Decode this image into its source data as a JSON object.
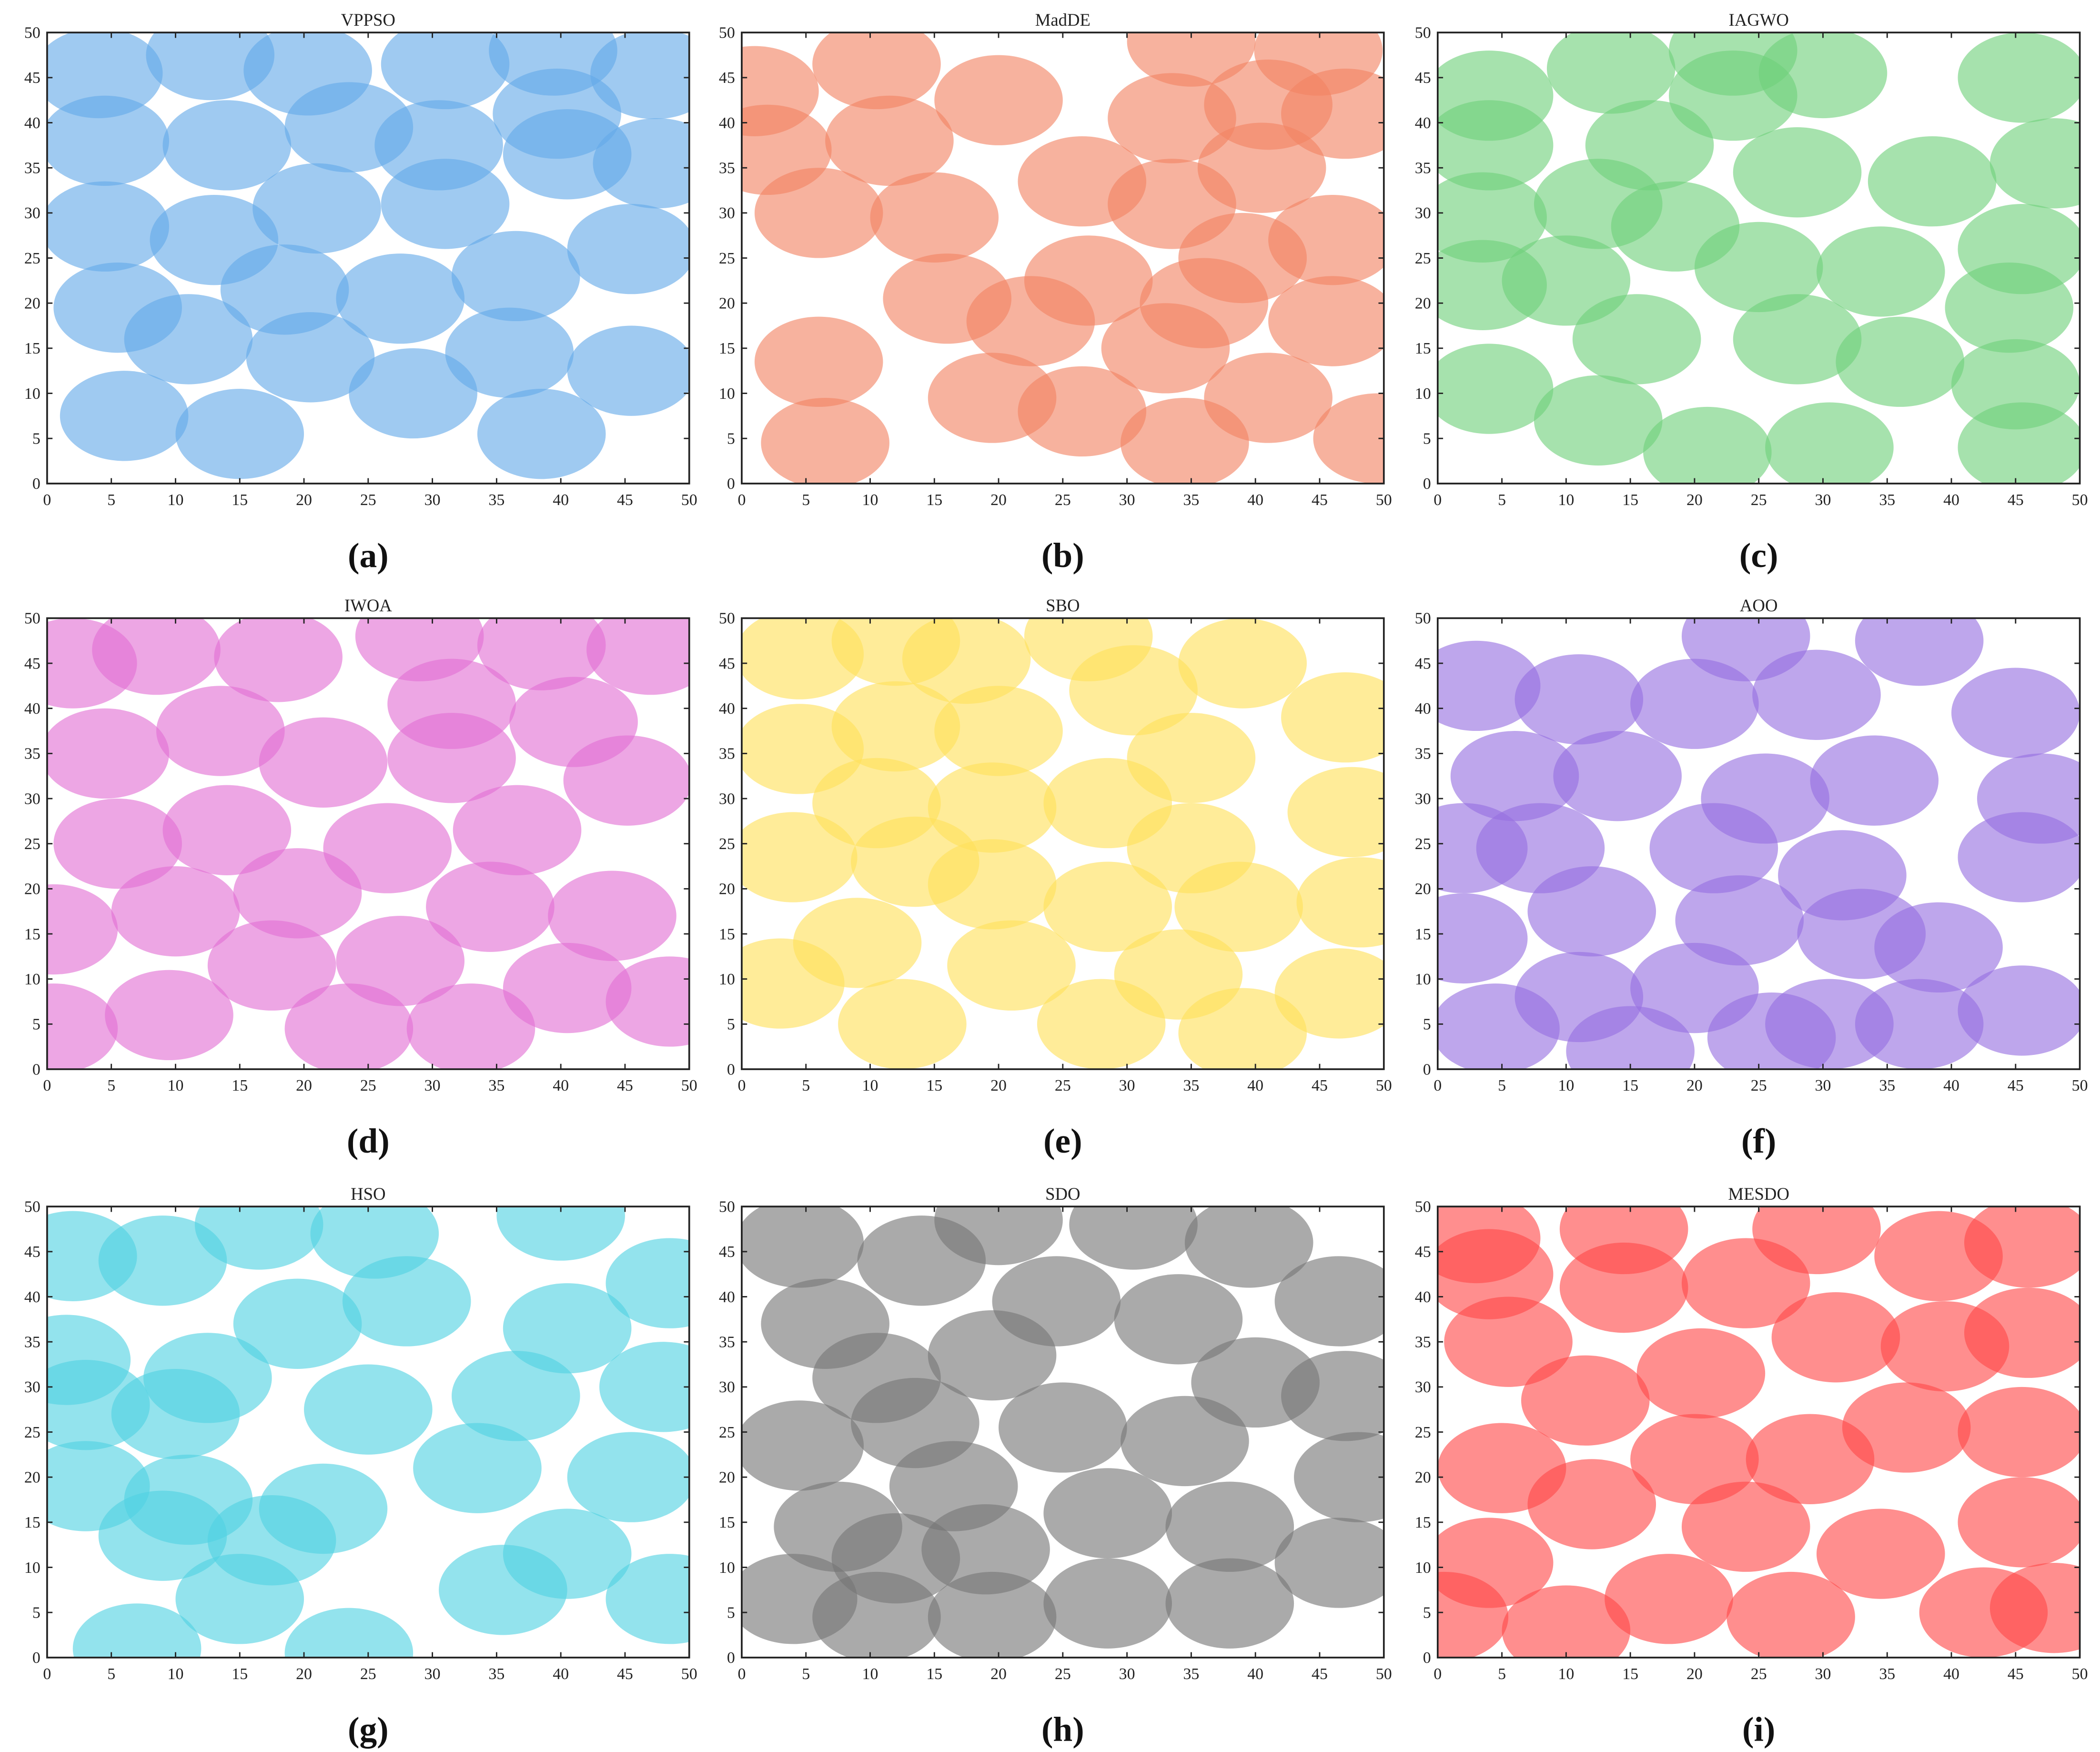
{
  "chart_data": [
    {
      "type": "scatter",
      "title": "VPPSO",
      "caption": "(a)",
      "color": "rgba(100,170,232,0.62)",
      "marker_radius": 5,
      "xlim": [
        0,
        50
      ],
      "ylim": [
        0,
        50
      ],
      "xticks": [
        0,
        5,
        10,
        15,
        20,
        25,
        30,
        35,
        40,
        45,
        50
      ],
      "yticks": [
        0,
        5,
        10,
        15,
        20,
        25,
        30,
        35,
        40,
        45,
        50
      ],
      "x": [
        4,
        12.7,
        20.3,
        31,
        39.4,
        47.3,
        4.5,
        14,
        23.5,
        30.5,
        39.7,
        40.5,
        47.5,
        4.5,
        13,
        21,
        31,
        36.5,
        45.5,
        5.5,
        11,
        18.5,
        27.5,
        36,
        20.5,
        28.5,
        45.5,
        6,
        15,
        38.5
      ],
      "y": [
        45.5,
        47.5,
        45.8,
        46.5,
        48,
        45.4,
        38,
        37.5,
        39.5,
        37.5,
        41,
        36.5,
        35.5,
        28.5,
        27,
        30.5,
        31,
        23,
        26,
        19.5,
        16,
        21.5,
        20.5,
        14.5,
        14,
        10,
        12.5,
        7.5,
        5.5,
        5.5
      ]
    },
    {
      "type": "scatter",
      "title": "MadDE",
      "caption": "(b)",
      "color": "rgba(242,130,98,0.62)",
      "marker_radius": 5,
      "xlim": [
        0,
        50
      ],
      "ylim": [
        0,
        50
      ],
      "xticks": [
        0,
        5,
        10,
        15,
        20,
        25,
        30,
        35,
        40,
        45,
        50
      ],
      "yticks": [
        0,
        5,
        10,
        15,
        20,
        25,
        30,
        35,
        40,
        45,
        50
      ],
      "x": [
        1,
        10.5,
        20,
        35,
        44.9,
        2,
        11.5,
        6,
        15,
        26.5,
        33.5,
        41,
        47,
        33.5,
        40.5,
        46,
        39,
        16,
        27,
        36,
        22.5,
        46,
        33,
        6,
        19.5,
        26.5,
        41,
        34.5,
        6.5,
        49.5
      ],
      "y": [
        43.5,
        46.5,
        42.5,
        49,
        48,
        37,
        38,
        30,
        29.5,
        33.5,
        40.5,
        42,
        41,
        31,
        35,
        27,
        25,
        20.5,
        22.5,
        20,
        18,
        18,
        15,
        13.5,
        9.5,
        8,
        9.5,
        4.5,
        4.5,
        5
      ]
    },
    {
      "type": "scatter",
      "title": "IAGWO",
      "caption": "(c)",
      "color": "rgba(112,208,122,0.62)",
      "marker_radius": 5,
      "xlim": [
        0,
        50
      ],
      "ylim": [
        0,
        50
      ],
      "xticks": [
        0,
        5,
        10,
        15,
        20,
        25,
        30,
        35,
        40,
        45,
        50
      ],
      "yticks": [
        0,
        5,
        10,
        15,
        20,
        25,
        30,
        35,
        40,
        45,
        50
      ],
      "x": [
        4,
        13.5,
        23,
        30,
        45.5,
        4,
        16.5,
        23,
        28,
        38.5,
        48,
        3.5,
        12.5,
        18.5,
        25,
        34.5,
        45.5,
        3.5,
        10,
        15.5,
        28,
        36,
        44.5,
        4,
        12.5,
        21,
        30.5,
        45,
        45.5
      ],
      "y": [
        43,
        46,
        48,
        45.5,
        45,
        37.5,
        37.5,
        43,
        34.5,
        33.5,
        35.5,
        29.5,
        31,
        28.5,
        24,
        23.5,
        26,
        22,
        22.5,
        16,
        16,
        13.5,
        19.5,
        10.5,
        7,
        3.5,
        4,
        11,
        4
      ]
    },
    {
      "type": "scatter",
      "title": "IWOA",
      "caption": "(d)",
      "color": "rgba(226,112,212,0.62)",
      "marker_radius": 5,
      "xlim": [
        0,
        50
      ],
      "ylim": [
        0,
        50
      ],
      "xticks": [
        0,
        5,
        10,
        15,
        20,
        25,
        30,
        35,
        40,
        45,
        50
      ],
      "yticks": [
        0,
        5,
        10,
        15,
        20,
        25,
        30,
        35,
        40,
        45,
        50
      ],
      "x": [
        2,
        8.5,
        18,
        29,
        38.5,
        47,
        4.5,
        13.5,
        21.5,
        31.5,
        31.5,
        41,
        45.2,
        5.5,
        14,
        26.5,
        36.6,
        0.5,
        10,
        19.5,
        34.5,
        44,
        17.5,
        27.5,
        40.5,
        48.5,
        0.5,
        9.5,
        23.5,
        33
      ],
      "y": [
        45,
        46.5,
        45.7,
        48,
        47,
        46.5,
        35,
        37.5,
        34,
        34.5,
        40.5,
        38.5,
        32,
        25,
        26.5,
        24.5,
        26.5,
        15.5,
        17.5,
        19.5,
        18,
        17,
        11.5,
        12,
        9,
        7.5,
        4.5,
        6,
        4.5,
        4.5
      ]
    },
    {
      "type": "scatter",
      "title": "SBO",
      "caption": "(e)",
      "color": "rgba(255,224,90,0.62)",
      "marker_radius": 5,
      "xlim": [
        0,
        50
      ],
      "ylim": [
        0,
        50
      ],
      "xticks": [
        0,
        5,
        10,
        15,
        20,
        25,
        30,
        35,
        40,
        45,
        50
      ],
      "yticks": [
        0,
        5,
        10,
        15,
        20,
        25,
        30,
        35,
        40,
        45,
        50
      ],
      "x": [
        4.5,
        12,
        17.5,
        27,
        30.5,
        39,
        4.5,
        12,
        20,
        47,
        35,
        10.5,
        19.5,
        28.5,
        47.5,
        4,
        13.5,
        19.5,
        35,
        28.5,
        38.7,
        48.2,
        9,
        21,
        34,
        3,
        46.5,
        12.5,
        28,
        39
      ],
      "y": [
        46,
        47.5,
        45.5,
        48,
        42,
        45,
        35.5,
        38,
        37.5,
        39,
        34.5,
        29.5,
        29,
        29.5,
        28.5,
        23.5,
        23,
        20.5,
        24.5,
        18,
        18,
        18.5,
        14,
        11.5,
        10.5,
        9.5,
        8.4,
        5,
        5,
        4
      ]
    },
    {
      "type": "scatter",
      "title": "AOO",
      "caption": "(f)",
      "color": "rgba(150,112,224,0.62)",
      "marker_radius": 5,
      "xlim": [
        0,
        50
      ],
      "ylim": [
        0,
        50
      ],
      "xticks": [
        0,
        5,
        10,
        15,
        20,
        25,
        30,
        35,
        40,
        45,
        50
      ],
      "yticks": [
        0,
        5,
        10,
        15,
        20,
        25,
        30,
        35,
        40,
        45,
        50
      ],
      "x": [
        24,
        37.5,
        3,
        11,
        20,
        29.5,
        45,
        6,
        14,
        25.5,
        34,
        47,
        2,
        8,
        21.5,
        31.5,
        45.5,
        12,
        23.5,
        33,
        39,
        2,
        11,
        20,
        30.5,
        37.5,
        45.5,
        4.5,
        15,
        26
      ],
      "y": [
        48,
        47.5,
        42.5,
        41,
        40.5,
        41.5,
        39.5,
        32.5,
        32.5,
        30,
        32,
        30,
        24.5,
        24.5,
        24.5,
        21.5,
        23.5,
        17.5,
        16.5,
        15,
        13.5,
        14.5,
        8,
        9,
        5,
        5,
        6.5,
        4.5,
        2,
        3.5
      ]
    },
    {
      "type": "scatter",
      "title": "HSO",
      "caption": "(g)",
      "color": "rgba(80,210,226,0.62)",
      "marker_radius": 5,
      "xlim": [
        0,
        50
      ],
      "ylim": [
        0,
        50
      ],
      "xticks": [
        0,
        5,
        10,
        15,
        20,
        25,
        30,
        35,
        40,
        45,
        50
      ],
      "yticks": [
        0,
        5,
        10,
        15,
        20,
        25,
        30,
        35,
        40,
        45,
        50
      ],
      "x": [
        2,
        9,
        16.5,
        25.5,
        28,
        19.5,
        40,
        40.5,
        48.5,
        1.5,
        12.5,
        3,
        10,
        25,
        36.5,
        48,
        3,
        11,
        21.5,
        9,
        17.5,
        33.5,
        40.5,
        45.5,
        15,
        35.5,
        48.5,
        7,
        23.5
      ],
      "y": [
        44.5,
        44,
        48,
        47,
        39.5,
        37,
        49,
        36.5,
        41.5,
        33,
        31,
        28,
        27,
        27.5,
        29,
        30,
        19,
        17.5,
        16.5,
        13.5,
        13,
        21,
        11.5,
        20,
        6.5,
        7.5,
        6.5,
        1,
        0.5
      ]
    },
    {
      "type": "scatter",
      "title": "SDO",
      "caption": "(h)",
      "color": "rgba(118,118,118,0.62)",
      "marker_radius": 5,
      "xlim": [
        0,
        50
      ],
      "ylim": [
        0,
        50
      ],
      "xticks": [
        0,
        5,
        10,
        15,
        20,
        25,
        30,
        35,
        40,
        45,
        50
      ],
      "yticks": [
        0,
        5,
        10,
        15,
        20,
        25,
        30,
        35,
        40,
        45,
        50
      ],
      "x": [
        4.5,
        14,
        20,
        30.5,
        39.5,
        6.5,
        24.5,
        34,
        46.5,
        19.5,
        10.5,
        40,
        47,
        13.5,
        25,
        34.5,
        4.5,
        16.5,
        7.5,
        28.5,
        38,
        46.5,
        48,
        12,
        19,
        4,
        10.5,
        19.5,
        28.5,
        38
      ],
      "y": [
        46,
        44,
        48.5,
        48,
        46,
        37,
        39.5,
        37.5,
        39.5,
        33.5,
        31,
        30.5,
        29,
        26,
        25.5,
        24,
        23.5,
        19,
        14.5,
        16,
        14.5,
        10.5,
        20,
        11,
        12,
        6.5,
        4.5,
        4.5,
        6,
        6
      ]
    },
    {
      "type": "scatter",
      "title": "MESDO",
      "caption": "(i)",
      "color": "rgba(255,72,72,0.62)",
      "marker_radius": 5,
      "xlim": [
        0,
        50
      ],
      "ylim": [
        0,
        50
      ],
      "xticks": [
        0,
        5,
        10,
        15,
        20,
        25,
        30,
        35,
        40,
        45,
        50
      ],
      "yticks": [
        0,
        5,
        10,
        15,
        20,
        25,
        30,
        35,
        40,
        45,
        50
      ],
      "x": [
        3,
        14.5,
        29.5,
        39,
        46,
        4,
        14.5,
        24,
        5.5,
        20.5,
        31,
        39.5,
        46,
        11.5,
        36.5,
        45.5,
        5,
        20,
        29,
        12,
        24,
        34.5,
        45.5,
        4,
        18,
        27.5,
        42.5,
        48,
        0.5,
        10
      ],
      "y": [
        46.5,
        47.5,
        47.5,
        44.5,
        46,
        42.5,
        41,
        41.5,
        35,
        31.5,
        35.5,
        34.5,
        36,
        28.5,
        25.5,
        25,
        21,
        22,
        22,
        17,
        14.5,
        11.5,
        15,
        10.5,
        6.5,
        4.5,
        5,
        5.5,
        4.5,
        3
      ]
    }
  ]
}
